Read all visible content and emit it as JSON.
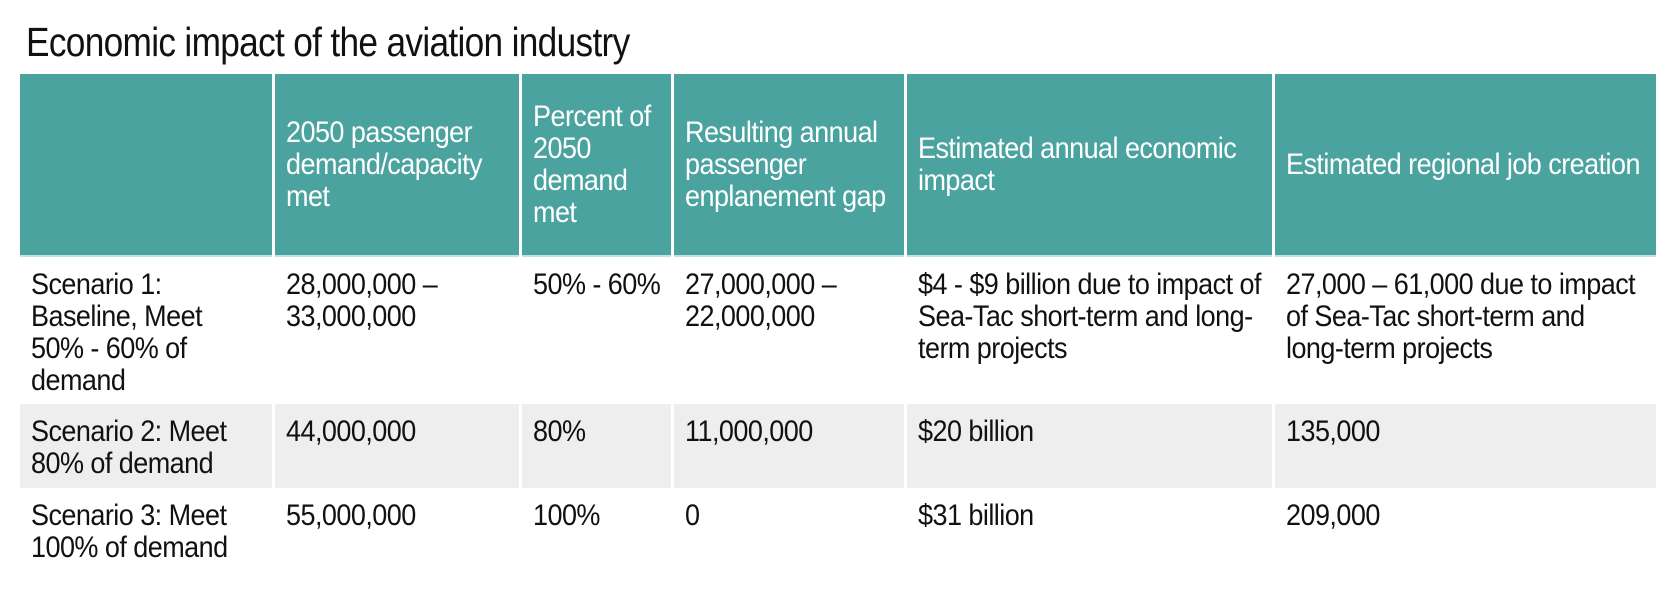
{
  "title": "Economic impact of the aviation industry",
  "table": {
    "headers": [
      "",
      "2050 passenger demand/capacity met",
      "Percent of 2050 demand met",
      "Resulting annual passenger enplanement gap",
      "Estimated annual economic impact",
      "Estimated regional job creation"
    ],
    "rows": [
      [
        "Scenario 1: Baseline, Meet 50% - 60% of demand",
        "28,000,000 – 33,000,000",
        "50% - 60%",
        "27,000,000 – 22,000,000",
        "$4 - $9 billion due to impact of Sea-Tac short-term and long-term projects",
        "27,000 – 61,000 due to impact of Sea-Tac short-term and long-term projects"
      ],
      [
        "Scenario 2: Meet 80% of demand",
        "44,000,000",
        "80%",
        "11,000,000",
        "$20 billion",
        "135,000"
      ],
      [
        "Scenario 3: Meet 100% of demand",
        "55,000,000",
        "100%",
        "0",
        "$31 billion",
        "209,000"
      ]
    ]
  },
  "colors": {
    "header_background": "#4aa39f",
    "header_text": "#ffffff",
    "alternate_row_background": "#eeeeee",
    "body_text": "#111111"
  }
}
